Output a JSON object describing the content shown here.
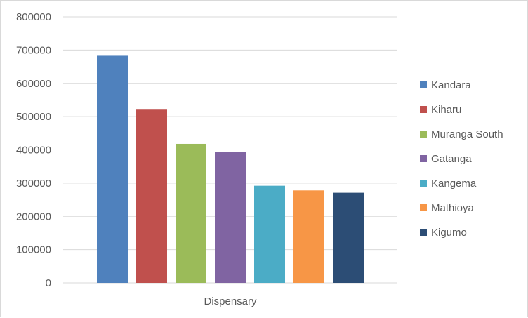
{
  "chart_data": {
    "type": "bar",
    "categories": [
      "Dispensary"
    ],
    "series": [
      {
        "name": "Kandara",
        "values": [
          683000
        ],
        "color": "#4f81bd"
      },
      {
        "name": "Kiharu",
        "values": [
          523000
        ],
        "color": "#c0504d"
      },
      {
        "name": "Muranga South",
        "values": [
          418000
        ],
        "color": "#9bbb59"
      },
      {
        "name": "Gatanga",
        "values": [
          394000
        ],
        "color": "#8064a2"
      },
      {
        "name": "Kangema",
        "values": [
          292000
        ],
        "color": "#4bacc6"
      },
      {
        "name": "Mathioya",
        "values": [
          278000
        ],
        "color": "#f79646"
      },
      {
        "name": "Kigumo",
        "values": [
          271000
        ],
        "color": "#2c4d75"
      }
    ],
    "yticks": [
      "0",
      "100000",
      "200000",
      "300000",
      "400000",
      "500000",
      "600000",
      "700000",
      "800000"
    ],
    "ylim": [
      0,
      800000
    ],
    "grid": true,
    "legend_position": "right",
    "gridline_color": "#d9d9d9"
  }
}
